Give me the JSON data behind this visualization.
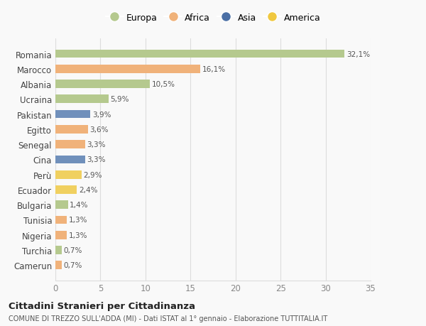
{
  "countries": [
    "Romania",
    "Marocco",
    "Albania",
    "Ucraina",
    "Pakistan",
    "Egitto",
    "Senegal",
    "Cina",
    "Perù",
    "Ecuador",
    "Bulgaria",
    "Tunisia",
    "Nigeria",
    "Turchia",
    "Camerun"
  ],
  "values": [
    32.1,
    16.1,
    10.5,
    5.9,
    3.9,
    3.6,
    3.3,
    3.3,
    2.9,
    2.4,
    1.4,
    1.3,
    1.3,
    0.7,
    0.7
  ],
  "labels": [
    "32,1%",
    "16,1%",
    "10,5%",
    "5,9%",
    "3,9%",
    "3,6%",
    "3,3%",
    "3,3%",
    "2,9%",
    "2,4%",
    "1,4%",
    "1,3%",
    "1,3%",
    "0,7%",
    "0,7%"
  ],
  "continents": [
    "Europa",
    "Africa",
    "Europa",
    "Europa",
    "Asia",
    "Africa",
    "Africa",
    "Asia",
    "America",
    "America",
    "Europa",
    "Africa",
    "Africa",
    "Europa",
    "Africa"
  ],
  "colors": {
    "Europa": "#b5c98e",
    "Africa": "#f0b27a",
    "Asia": "#7090bb",
    "America": "#f0d060"
  },
  "legend_colors": {
    "Europa": "#b5c98e",
    "Africa": "#f0b27a",
    "Asia": "#4a6fa5",
    "America": "#f0c840"
  },
  "xlim": [
    0,
    35
  ],
  "xticks": [
    0,
    5,
    10,
    15,
    20,
    25,
    30,
    35
  ],
  "title": "Cittadini Stranieri per Cittadinanza",
  "subtitle": "COMUNE DI TREZZO SULL'ADDA (MI) - Dati ISTAT al 1° gennaio - Elaborazione TUTTITALIA.IT",
  "background_color": "#f9f9f9",
  "grid_color": "#dddddd"
}
